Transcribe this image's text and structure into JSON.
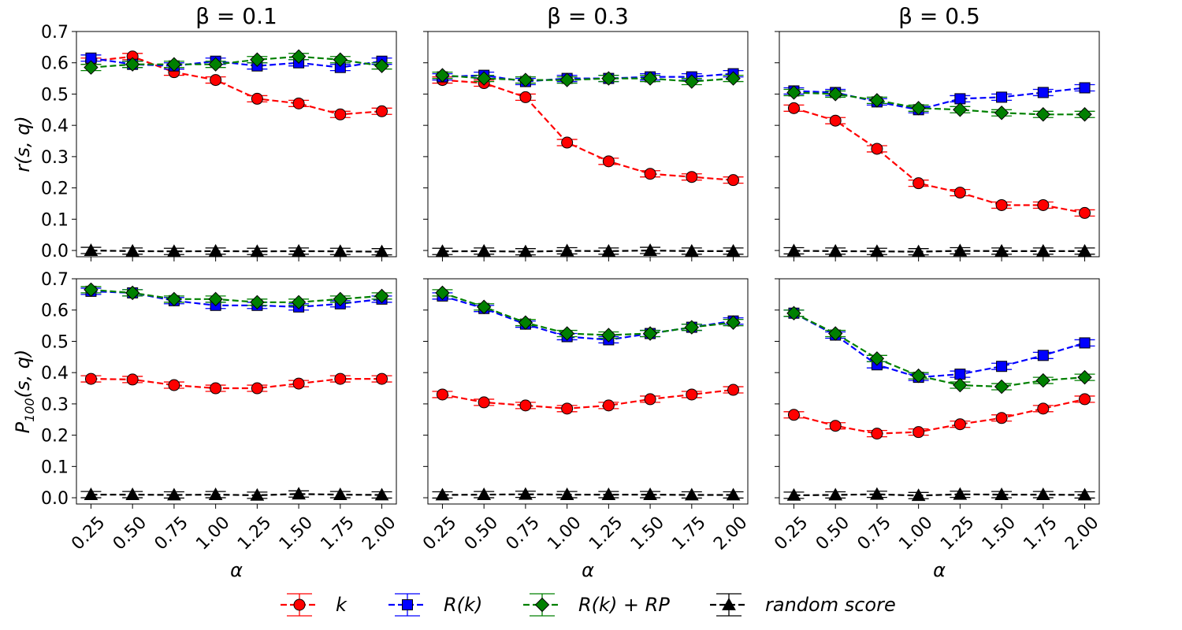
{
  "chart_data": {
    "type": "line",
    "layout": "2x3 grid of subplots, shared axes",
    "x": [
      0.25,
      0.5,
      0.75,
      1.0,
      1.25,
      1.5,
      1.75,
      2.0
    ],
    "xtick_labels": [
      "0.25",
      "0.50",
      "0.75",
      "1.00",
      "1.25",
      "1.50",
      "1.75",
      "2.00"
    ],
    "xlabel": "α",
    "ylim": [
      -0.02,
      0.7
    ],
    "ytick_labels": [
      "0.0",
      "0.1",
      "0.2",
      "0.3",
      "0.4",
      "0.5",
      "0.6",
      "0.7"
    ],
    "yticks": [
      0,
      0.1,
      0.2,
      0.3,
      0.4,
      0.5,
      0.6,
      0.7
    ],
    "column_titles": [
      "β = 0.1",
      "β = 0.3",
      "β = 0.5"
    ],
    "row_ylabels": [
      {
        "main": "r(s, q)",
        "sub": ""
      },
      {
        "main": "P",
        "sub": "100",
        "rest": "(s, q)"
      }
    ],
    "series_styles": [
      {
        "name": "k",
        "color": "#ff0000",
        "marker": "circle"
      },
      {
        "name": "R(k)",
        "color": "#0000ff",
        "marker": "square"
      },
      {
        "name": "R(k) + RP",
        "color": "#008000",
        "marker": "diamond"
      },
      {
        "name": "random score",
        "color": "#000000",
        "marker": "triangle"
      }
    ],
    "legend": {
      "position": "bottom-center",
      "labels": [
        "k",
        "R(k)",
        "R(k) + RP",
        "random score"
      ]
    },
    "panels": [
      {
        "row": 0,
        "col": 0,
        "series": [
          {
            "name": "k",
            "values": [
              0.605,
              0.62,
              0.57,
              0.545,
              0.485,
              0.47,
              0.435,
              0.445
            ]
          },
          {
            "name": "R(k)",
            "values": [
              0.615,
              0.595,
              0.59,
              0.605,
              0.59,
              0.6,
              0.585,
              0.605
            ]
          },
          {
            "name": "R(k) + RP",
            "values": [
              0.585,
              0.595,
              0.595,
              0.595,
              0.61,
              0.62,
              0.61,
              0.59
            ]
          },
          {
            "name": "random score",
            "values": [
              0.0,
              -0.002,
              -0.003,
              -0.002,
              -0.003,
              -0.002,
              -0.003,
              -0.004
            ]
          }
        ]
      },
      {
        "row": 0,
        "col": 1,
        "series": [
          {
            "name": "k",
            "values": [
              0.545,
              0.535,
              0.49,
              0.345,
              0.285,
              0.245,
              0.235,
              0.225
            ]
          },
          {
            "name": "R(k)",
            "values": [
              0.555,
              0.56,
              0.54,
              0.55,
              0.55,
              0.555,
              0.555,
              0.565
            ]
          },
          {
            "name": "R(k) + RP",
            "values": [
              0.56,
              0.55,
              0.545,
              0.545,
              0.55,
              0.55,
              0.54,
              0.55
            ]
          },
          {
            "name": "random score",
            "values": [
              -0.003,
              -0.002,
              -0.004,
              -0.001,
              -0.002,
              0.0,
              -0.002,
              -0.002
            ]
          }
        ]
      },
      {
        "row": 0,
        "col": 2,
        "series": [
          {
            "name": "k",
            "values": [
              0.455,
              0.415,
              0.325,
              0.215,
              0.185,
              0.145,
              0.145,
              0.12
            ]
          },
          {
            "name": "R(k)",
            "values": [
              0.51,
              0.505,
              0.475,
              0.45,
              0.485,
              0.49,
              0.505,
              0.52
            ]
          },
          {
            "name": "R(k) + RP",
            "values": [
              0.505,
              0.5,
              0.48,
              0.455,
              0.45,
              0.44,
              0.435,
              0.435
            ]
          },
          {
            "name": "random score",
            "values": [
              -0.001,
              -0.002,
              -0.003,
              -0.004,
              -0.001,
              -0.002,
              -0.002,
              -0.002
            ]
          }
        ]
      },
      {
        "row": 1,
        "col": 0,
        "series": [
          {
            "name": "k",
            "values": [
              0.38,
              0.378,
              0.36,
              0.35,
              0.35,
              0.365,
              0.38,
              0.38
            ]
          },
          {
            "name": "R(k)",
            "values": [
              0.66,
              0.655,
              0.63,
              0.615,
              0.615,
              0.61,
              0.62,
              0.635
            ]
          },
          {
            "name": "R(k) + RP",
            "values": [
              0.665,
              0.655,
              0.635,
              0.635,
              0.625,
              0.625,
              0.635,
              0.645
            ]
          },
          {
            "name": "random score",
            "values": [
              0.01,
              0.01,
              0.009,
              0.01,
              0.008,
              0.012,
              0.01,
              0.009
            ]
          }
        ]
      },
      {
        "row": 1,
        "col": 1,
        "series": [
          {
            "name": "k",
            "values": [
              0.33,
              0.305,
              0.295,
              0.285,
              0.295,
              0.315,
              0.33,
              0.345
            ]
          },
          {
            "name": "R(k)",
            "values": [
              0.645,
              0.605,
              0.555,
              0.515,
              0.505,
              0.525,
              0.545,
              0.565
            ]
          },
          {
            "name": "R(k) + RP",
            "values": [
              0.655,
              0.61,
              0.56,
              0.525,
              0.52,
              0.525,
              0.545,
              0.56
            ]
          },
          {
            "name": "random score",
            "values": [
              0.009,
              0.01,
              0.011,
              0.01,
              0.01,
              0.01,
              0.009,
              0.009
            ]
          }
        ]
      },
      {
        "row": 1,
        "col": 2,
        "series": [
          {
            "name": "k",
            "values": [
              0.265,
              0.23,
              0.205,
              0.21,
              0.235,
              0.255,
              0.285,
              0.315
            ]
          },
          {
            "name": "R(k)",
            "values": [
              0.59,
              0.52,
              0.425,
              0.385,
              0.395,
              0.42,
              0.455,
              0.495
            ]
          },
          {
            "name": "R(k) + RP",
            "values": [
              0.59,
              0.525,
              0.445,
              0.39,
              0.36,
              0.355,
              0.375,
              0.385
            ]
          },
          {
            "name": "random score",
            "values": [
              0.008,
              0.009,
              0.011,
              0.007,
              0.011,
              0.01,
              0.01,
              0.009
            ]
          }
        ]
      }
    ]
  }
}
